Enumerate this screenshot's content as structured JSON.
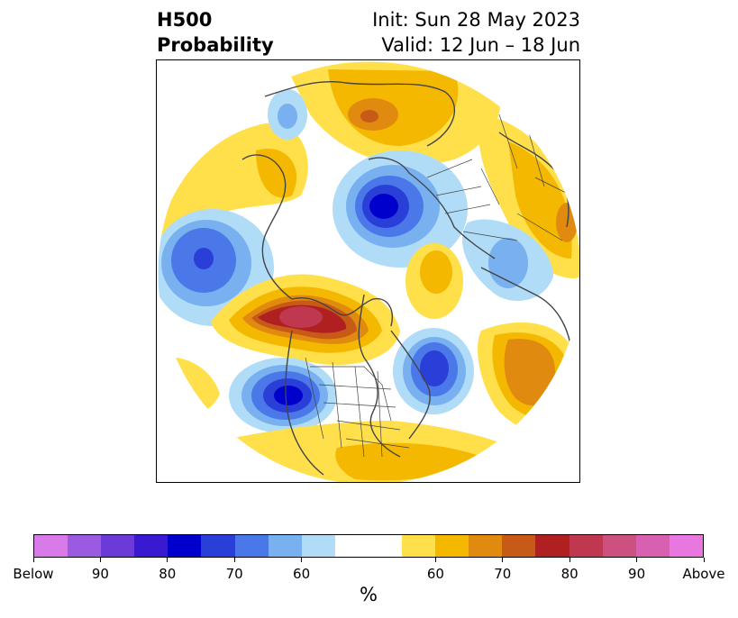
{
  "title": {
    "left_line1": "H500",
    "left_line2": "Probability",
    "right_line1": "Init: Sun 28 May 2023",
    "right_line2": "Valid: 12 Jun – 18 Jun"
  },
  "colorbar": {
    "colors": [
      "#d87ae8",
      "#9b5ae0",
      "#6b3ad8",
      "#3a1ad0",
      "#0000cd",
      "#2a3ed8",
      "#4a78e8",
      "#78b0f0",
      "#b0dcf8",
      "#ffffff",
      "#ffffff",
      "#ffe04a",
      "#f5b800",
      "#e08a10",
      "#c85a18",
      "#b02020",
      "#c03850",
      "#cc5080",
      "#d860b0",
      "#e878e0"
    ],
    "tick_labels": [
      "Below",
      "90",
      "80",
      "70",
      "60",
      "60",
      "70",
      "80",
      "90",
      "Above"
    ],
    "unit": "%"
  },
  "map": {
    "projection": "north polar stereographic",
    "palette": {
      "blue_light": "#b0dcf8",
      "blue_mid": "#78b0f0",
      "blue": "#4a78e8",
      "blue_dark": "#2a3ed8",
      "blue_deep": "#0000cd",
      "yellow": "#ffe04a",
      "gold": "#f5b800",
      "orange": "#e08a10",
      "orange_dark": "#c85a18",
      "red": "#b02020",
      "rose": "#c03850",
      "coast": "#444444"
    }
  }
}
